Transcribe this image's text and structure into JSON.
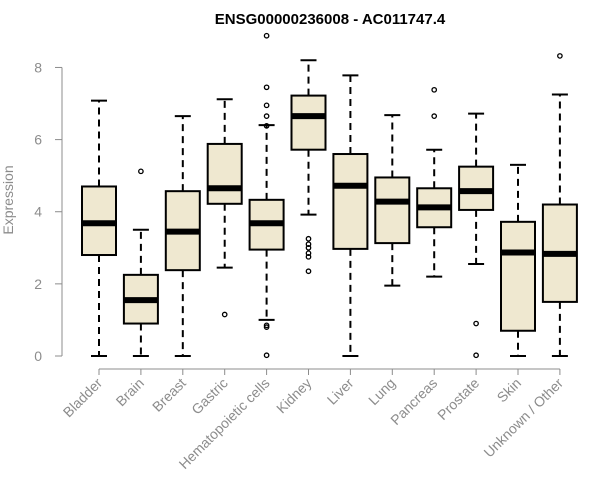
{
  "chart_data": {
    "type": "boxplot",
    "title": "ENSG00000236008 - AC011747.4",
    "ylabel": "Expression",
    "ylim": [
      0,
      8.9
    ],
    "yticks": [
      0,
      2,
      4,
      6,
      8
    ],
    "box_color": "#EFE8D0",
    "grid": false,
    "categories": [
      "Bladder",
      "Brain",
      "Breast",
      "Gastric",
      "Hematopoietic cells",
      "Kidney",
      "Liver",
      "Lung",
      "Pancreas",
      "Prostate",
      "Skin",
      "Unknown / Other"
    ],
    "boxes": [
      {
        "min": 0,
        "q1": 2.8,
        "median": 3.68,
        "q3": 4.7,
        "max": 7.08,
        "outliers": []
      },
      {
        "min": 0,
        "q1": 0.9,
        "median": 1.55,
        "q3": 2.25,
        "max": 3.5,
        "outliers": [
          5.12
        ]
      },
      {
        "min": 0,
        "q1": 2.38,
        "median": 3.45,
        "q3": 4.57,
        "max": 6.65,
        "outliers": []
      },
      {
        "min": 2.45,
        "q1": 4.22,
        "median": 4.65,
        "q3": 5.88,
        "max": 7.12,
        "outliers": [
          1.15
        ]
      },
      {
        "min": 1.0,
        "q1": 2.95,
        "median": 3.68,
        "q3": 4.33,
        "max": 6.4,
        "outliers": [
          8.88,
          7.45,
          6.95,
          6.65,
          6.38,
          0.85,
          0.8,
          0.02
        ]
      },
      {
        "min": 3.92,
        "q1": 5.72,
        "median": 6.65,
        "q3": 7.22,
        "max": 8.2,
        "outliers": [
          3.25,
          3.1,
          3.0,
          2.85,
          2.75,
          2.35
        ]
      },
      {
        "min": 0,
        "q1": 2.97,
        "median": 4.72,
        "q3": 5.6,
        "max": 7.78,
        "outliers": []
      },
      {
        "min": 1.95,
        "q1": 3.13,
        "median": 4.28,
        "q3": 4.95,
        "max": 6.68,
        "outliers": []
      },
      {
        "min": 2.2,
        "q1": 3.57,
        "median": 4.12,
        "q3": 4.65,
        "max": 5.72,
        "outliers": [
          7.38,
          6.65
        ]
      },
      {
        "min": 2.55,
        "q1": 4.05,
        "median": 4.57,
        "q3": 5.25,
        "max": 6.72,
        "outliers": [
          0.9,
          0.02
        ]
      },
      {
        "min": 0,
        "q1": 0.7,
        "median": 2.87,
        "q3": 3.72,
        "max": 5.3,
        "outliers": []
      },
      {
        "min": 0,
        "q1": 1.5,
        "median": 2.83,
        "q3": 4.2,
        "max": 7.25,
        "outliers": [
          8.32
        ]
      }
    ]
  }
}
